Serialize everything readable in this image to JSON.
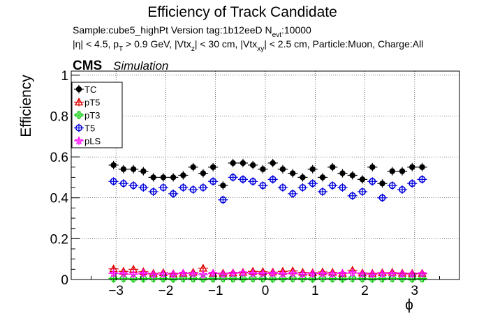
{
  "chart_data": {
    "type": "scatter",
    "title": "Efficiency of Track Candidate",
    "subtitle_line1": "Sample:cube5_highPt   Version tag:1b12eeD  N",
    "subtitle_line1_sub": "evt",
    "subtitle_line1_end": ":10000",
    "subtitle_line2": {
      "p0": "|η| < 4.5, p",
      "s0": "T",
      "p1": " > 0.9 GeV, |Vtx",
      "s1": "z",
      "p2": "| < 30 cm, |Vtx",
      "s2": "xy",
      "p3": "| < 2.5 cm, Particle:Muon, Charge:All"
    },
    "cms_label": "CMS",
    "simulation_label": "Simulation",
    "xlabel": "ϕ",
    "ylabel": "Efficiency",
    "xlim": [
      -3.9,
      3.9
    ],
    "ylim": [
      0,
      1.02
    ],
    "xticks": [
      -3,
      -2,
      -1,
      0,
      1,
      2,
      3
    ],
    "xtick_labels": [
      "−3",
      "−2",
      "−1",
      "0",
      "1",
      "2",
      "3"
    ],
    "yticks": [
      0,
      0.2,
      0.4,
      0.6,
      0.8,
      1
    ],
    "ytick_labels": [
      "0",
      "0.2",
      "0.4",
      "0.6",
      "0.8",
      "1"
    ],
    "grid": true,
    "legend_position": "top-left",
    "x": [
      -3.05,
      -2.85,
      -2.65,
      -2.45,
      -2.25,
      -2.05,
      -1.85,
      -1.65,
      -1.45,
      -1.25,
      -1.05,
      -0.85,
      -0.65,
      -0.45,
      -0.25,
      -0.05,
      0.15,
      0.35,
      0.55,
      0.75,
      0.95,
      1.15,
      1.35,
      1.55,
      1.75,
      1.95,
      2.15,
      2.35,
      2.55,
      2.75,
      2.95,
      3.15
    ],
    "series": [
      {
        "name": "TC",
        "color": "#000000",
        "marker": "filled-circle",
        "values": [
          0.56,
          0.54,
          0.54,
          0.53,
          0.5,
          0.5,
          0.5,
          0.51,
          0.55,
          0.52,
          0.55,
          0.46,
          0.57,
          0.57,
          0.56,
          0.54,
          0.57,
          0.54,
          0.52,
          0.5,
          0.54,
          0.5,
          0.55,
          0.52,
          0.51,
          0.49,
          0.55,
          0.47,
          0.53,
          0.53,
          0.55,
          0.55
        ]
      },
      {
        "name": "pT5",
        "color": "#dd0000",
        "marker": "open-triangle",
        "values": [
          0.052,
          0.04,
          0.05,
          0.038,
          0.03,
          0.033,
          0.028,
          0.03,
          0.035,
          0.055,
          0.03,
          0.031,
          0.032,
          0.035,
          0.04,
          0.038,
          0.036,
          0.04,
          0.042,
          0.035,
          0.033,
          0.037,
          0.035,
          0.03,
          0.045,
          0.032,
          0.03,
          0.033,
          0.035,
          0.031,
          0.03,
          0.03
        ]
      },
      {
        "name": "pT3",
        "color": "#00cc00",
        "marker": "open-cross",
        "values": [
          0.005,
          0.006,
          0.004,
          0.005,
          0.006,
          0.005,
          0.004,
          0.006,
          0.005,
          0.004,
          0.005,
          0.006,
          0.005,
          0.004,
          0.006,
          0.005,
          0.004,
          0.005,
          0.006,
          0.005,
          0.004,
          0.006,
          0.005,
          0.004,
          0.006,
          0.005,
          0.004,
          0.005,
          0.006,
          0.005,
          0.004,
          0.005
        ]
      },
      {
        "name": "T5",
        "color": "#0000dd",
        "marker": "open-circle",
        "values": [
          0.48,
          0.47,
          0.46,
          0.45,
          0.43,
          0.45,
          0.42,
          0.45,
          0.44,
          0.45,
          0.48,
          0.39,
          0.5,
          0.49,
          0.48,
          0.46,
          0.49,
          0.45,
          0.42,
          0.45,
          0.47,
          0.43,
          0.46,
          0.45,
          0.41,
          0.43,
          0.48,
          0.4,
          0.46,
          0.44,
          0.47,
          0.49
        ]
      },
      {
        "name": "pLS",
        "color": "#ff00ff",
        "marker": "open-star",
        "values": [
          0.03,
          0.028,
          0.026,
          0.03,
          0.025,
          0.027,
          0.026,
          0.03,
          0.028,
          0.024,
          0.03,
          0.026,
          0.03,
          0.032,
          0.03,
          0.029,
          0.03,
          0.028,
          0.03,
          0.026,
          0.028,
          0.029,
          0.027,
          0.03,
          0.032,
          0.027,
          0.026,
          0.028,
          0.029,
          0.027,
          0.026,
          0.028
        ]
      }
    ]
  }
}
